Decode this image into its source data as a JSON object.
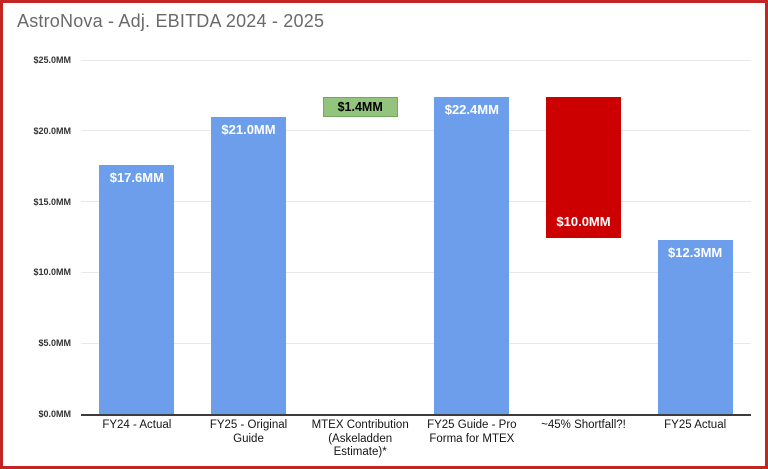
{
  "window": {
    "border_color": "#c32525",
    "background": "#ffffff"
  },
  "colors": {
    "bar_blue": "#6d9eeb",
    "bar_green": "#93c47d",
    "bar_green_border": "#74a85f",
    "bar_red": "#cc0000",
    "title_gray": "#6a6a6a",
    "gridline": "#e8e8e8",
    "axis_line": "#3c3c3c"
  },
  "chart_data": {
    "type": "bar",
    "title": "AstroNova - Adj. EBITDA 2024 - 2025",
    "xlabel": "",
    "ylabel": "",
    "ylim": [
      0,
      25
    ],
    "grid": true,
    "legend": "none",
    "yticks": [
      {
        "value": 0,
        "label": "$0.0MM"
      },
      {
        "value": 5,
        "label": "$5.0MM"
      },
      {
        "value": 10,
        "label": "$10.0MM"
      },
      {
        "value": 15,
        "label": "$15.0MM"
      },
      {
        "value": 20,
        "label": "$20.0MM"
      },
      {
        "value": 25,
        "label": "$25.0MM"
      }
    ],
    "categories": [
      "FY24 - Actual",
      "FY25 - Original\nGuide",
      "MTEX Contribution\n(Askeladden\nEstimate)*",
      "FY25 Guide - Pro\nForma for MTEX",
      "~45% Shortfall?!",
      "FY25 Actual"
    ],
    "bars": [
      {
        "category": "FY24 - Actual",
        "value_label": "$17.6MM",
        "start": 0,
        "end": 17.6,
        "value": 17.6,
        "color": "#6d9eeb",
        "label_color": "#ffffff",
        "label_anchor": "top"
      },
      {
        "category": "FY25 - Original Guide",
        "value_label": "$21.0MM",
        "start": 0,
        "end": 21.0,
        "value": 21.0,
        "color": "#6d9eeb",
        "label_color": "#ffffff",
        "label_anchor": "top"
      },
      {
        "category": "MTEX Contribution (Askeladden Estimate)*",
        "value_label": "$1.4MM",
        "start": 21.0,
        "end": 22.4,
        "value": 1.4,
        "color": "#93c47d",
        "border_color": "#74a85f",
        "label_color": "#000000",
        "label_anchor": "middle"
      },
      {
        "category": "FY25 Guide - Pro Forma for MTEX",
        "value_label": "$22.4MM",
        "start": 0,
        "end": 22.4,
        "value": 22.4,
        "color": "#6d9eeb",
        "label_color": "#ffffff",
        "label_anchor": "top"
      },
      {
        "category": "~45% Shortfall?!",
        "value_label": "$10.0MM",
        "start": 12.4,
        "end": 22.4,
        "value": 10.0,
        "color": "#cc0000",
        "label_color": "#ffffff",
        "label_anchor": "bottom"
      },
      {
        "category": "FY25 Actual",
        "value_label": "$12.3MM",
        "start": 0,
        "end": 12.3,
        "value": 12.3,
        "color": "#6d9eeb",
        "label_color": "#ffffff",
        "label_anchor": "top"
      }
    ]
  }
}
